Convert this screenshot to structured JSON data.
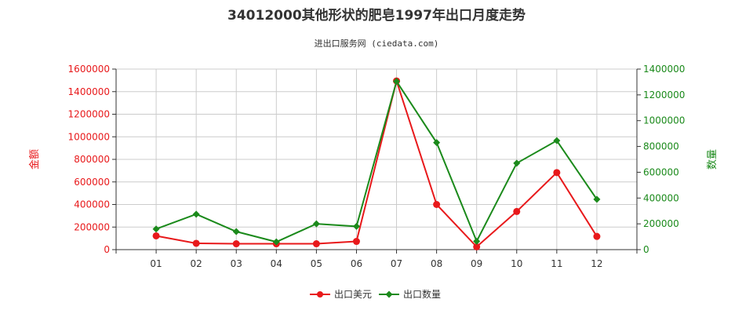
{
  "chart_data": {
    "type": "line",
    "title": "34012000其他形状的肥皂1997年出口月度走势",
    "subtitle": "进出口服务网 (ciedata.com)",
    "categories": [
      "01",
      "02",
      "03",
      "04",
      "05",
      "06",
      "07",
      "08",
      "09",
      "10",
      "11",
      "12"
    ],
    "left_axis": {
      "label": "金额",
      "ylim": [
        0,
        1600000
      ],
      "ticks": [
        0,
        200000,
        400000,
        600000,
        800000,
        1000000,
        1200000,
        1400000,
        1600000
      ]
    },
    "right_axis": {
      "label": "数量",
      "ylim": [
        0,
        1400000
      ],
      "ticks": [
        0,
        200000,
        400000,
        600000,
        800000,
        1000000,
        1200000,
        1400000
      ]
    },
    "series": [
      {
        "name": "出口美元",
        "axis": "left",
        "values": [
          122000,
          56000,
          52000,
          52000,
          52000,
          73000,
          1495000,
          400000,
          25000,
          338000,
          683000,
          117000
        ]
      },
      {
        "name": "出口数量",
        "axis": "right",
        "values": [
          160000,
          275000,
          140000,
          60000,
          200000,
          180000,
          1305000,
          830000,
          65000,
          670000,
          845000,
          390000
        ]
      }
    ],
    "grid": true,
    "legend": "bottom-center"
  },
  "colors": {
    "amount": "#e8191b",
    "quantity": "#1b8a1b",
    "grid": "#cccccc",
    "axis": "#333333"
  }
}
